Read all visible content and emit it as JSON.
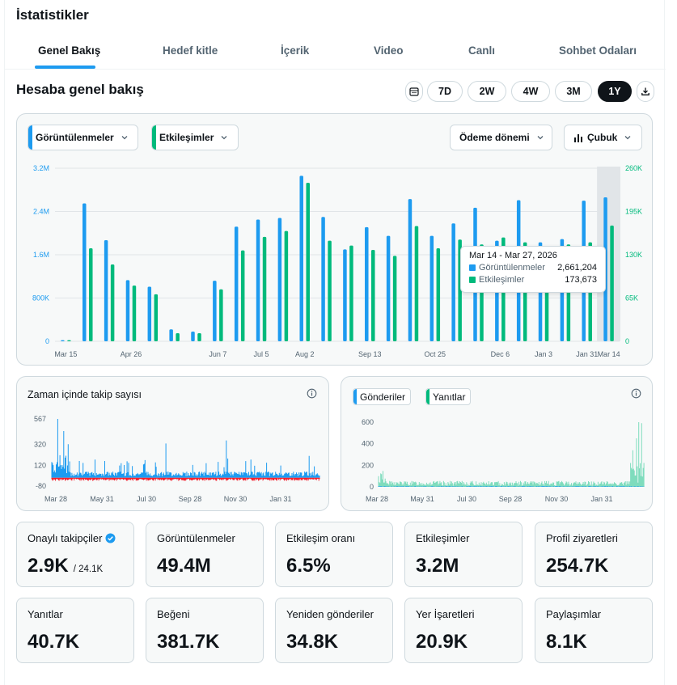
{
  "page_title": "İstatistikler",
  "tabs": [
    "Genel Bakış",
    "Hedef kitle",
    "İçerik",
    "Video",
    "Canlı",
    "Sohbet Odaları"
  ],
  "section_title": "Hesaba genel bakış",
  "ranges": [
    "7D",
    "2W",
    "4W",
    "3M",
    "1Y"
  ],
  "selected_range": "1Y",
  "main_chart": {
    "dropdowns": {
      "metric1": "Görüntülenmeler",
      "metric2": "Etkileşimler",
      "period": "Ödeme dönemi",
      "chart_type": "Çubuk"
    },
    "tooltip": {
      "date": "Mar 14 - Mar 27, 2026",
      "views_label": "Görüntülenmeler",
      "views_value": "2,661,204",
      "eng_label": "Etkileşimler",
      "eng_value": "173,673"
    }
  },
  "follower_chart": {
    "title": "Zaman içinde takip sayısı"
  },
  "posts_chart": {
    "legend_posts": "Gönderiler",
    "legend_replies": "Yanıtlar"
  },
  "stats": [
    {
      "label": "Onaylı takipçiler",
      "value": "2.9K",
      "sub": "/ 24.1K"
    },
    {
      "label": "Görüntülenmeler",
      "value": "49.4M"
    },
    {
      "label": "Etkileşim oranı",
      "value": "6.5%"
    },
    {
      "label": "Etkileşimler",
      "value": "3.2M"
    },
    {
      "label": "Profil ziyaretleri",
      "value": "254.7K"
    },
    {
      "label": "Yanıtlar",
      "value": "40.7K"
    },
    {
      "label": "Beğeni",
      "value": "381.7K"
    },
    {
      "label": "Yeniden gönderiler",
      "value": "34.8K"
    },
    {
      "label": "Yer İşaretleri",
      "value": "20.9K"
    },
    {
      "label": "Paylaşımlar",
      "value": "8.1K"
    }
  ],
  "colors": {
    "blue": "#1d9bf0",
    "green": "#00ba7c",
    "red": "#f4212e",
    "text": "#0f1419",
    "muted": "#536471"
  },
  "chart_data": [
    {
      "type": "bar",
      "title": "",
      "x_tick_labels": [
        "Mar 15",
        "Apr 26",
        "Jun 7",
        "Jul 5",
        "Aug 2",
        "Sep 13",
        "Oct 25",
        "Dec 6",
        "Jan 3",
        "Jan 31",
        "Mar 14"
      ],
      "y_left_ticks": [
        "0",
        "800K",
        "1.6M",
        "2.4M",
        "3.2M"
      ],
      "y_right_ticks": [
        "0",
        "65K",
        "130K",
        "195K",
        "260K"
      ],
      "ylim_left": [
        0,
        3200000
      ],
      "ylim_right": [
        0,
        260000
      ],
      "series": [
        {
          "name": "Görüntülenmeler",
          "axis": "left",
          "values": [
            20000,
            2550000,
            1870000,
            1130000,
            1010000,
            220000,
            180000,
            1120000,
            2120000,
            2250000,
            2280000,
            3060000,
            2300000,
            1700000,
            2110000,
            1950000,
            2630000,
            1950000,
            2180000,
            2470000,
            1860000,
            2610000,
            1830000,
            1890000,
            2600000,
            2661204
          ]
        },
        {
          "name": "Etkileşimler",
          "axis": "left",
          "values": [
            20000,
            1720000,
            1420000,
            1030000,
            870000,
            150000,
            150000,
            960000,
            1680000,
            1930000,
            2040000,
            2930000,
            1860000,
            1770000,
            1690000,
            1580000,
            2130000,
            1720000,
            1880000,
            1790000,
            1920000,
            1830000,
            1690000,
            1790000,
            1830000,
            2140000
          ]
        }
      ],
      "tooltip": {
        "date": "Mar 14 - Mar 27, 2026",
        "views": 2661204,
        "engagements": 173673
      }
    },
    {
      "type": "bar",
      "title": "Zaman içinde takip sayısı",
      "x_tick_labels": [
        "Mar 28",
        "May 31",
        "Jul 30",
        "Sep 28",
        "Nov 30",
        "Jan 31"
      ],
      "y_ticks": [
        "-80",
        "120",
        "320",
        "567"
      ],
      "ylim": [
        -80,
        567
      ],
      "series": [
        {
          "name": "gains",
          "color": "blue"
        },
        {
          "name": "losses",
          "color": "red"
        }
      ]
    },
    {
      "type": "area",
      "x_tick_labels": [
        "Mar 28",
        "May 31",
        "Jul 30",
        "Sep 28",
        "Nov 30",
        "Jan 31"
      ],
      "y_ticks": [
        "0",
        "200",
        "400",
        "600"
      ],
      "ylim": [
        0,
        600
      ],
      "series": [
        {
          "name": "Gönderiler",
          "color": "blue"
        },
        {
          "name": "Yanıtlar",
          "color": "green"
        }
      ]
    }
  ]
}
